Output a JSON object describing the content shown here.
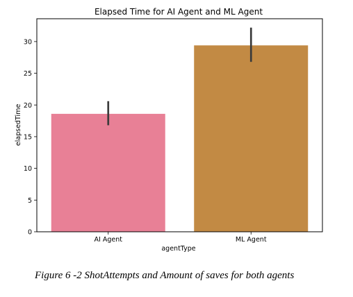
{
  "chart_data": {
    "type": "bar",
    "title": "Elapsed Time for AI Agent and ML Agent",
    "xlabel": "agentType",
    "ylabel": "elapsedTime",
    "categories": [
      "AI Agent",
      "ML Agent"
    ],
    "values": [
      18.6,
      29.4
    ],
    "error_bars": [
      {
        "low": 16.8,
        "high": 20.6
      },
      {
        "low": 26.8,
        "high": 32.2
      }
    ],
    "ylim": [
      0,
      33.6
    ],
    "yticks": [
      0,
      5,
      10,
      15,
      20,
      25,
      30
    ],
    "colors": [
      "#e88096",
      "#c28a44"
    ],
    "errorbar_color": "#3b3b3b",
    "grid": false,
    "legend": "none"
  },
  "caption": "Figure 6 -2 ShotAttempts and Amount of saves for both agents"
}
